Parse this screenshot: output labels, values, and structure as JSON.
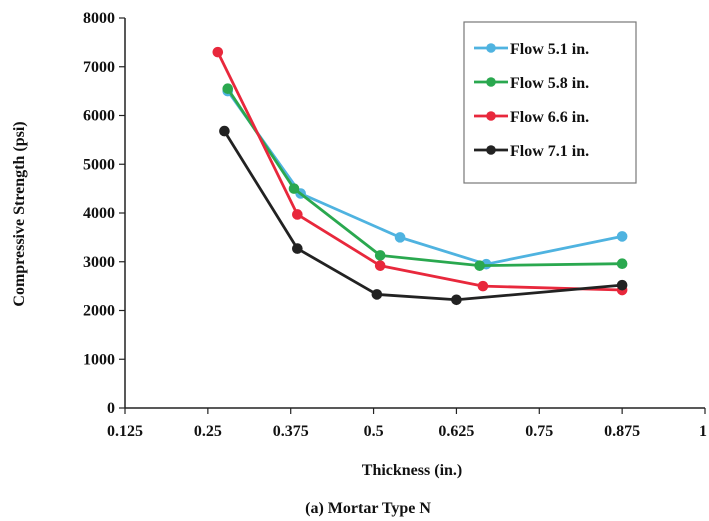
{
  "chart_data": {
    "type": "line",
    "xlabel": "Thickness (in.)",
    "ylabel": "Compressive Strength (psi)",
    "caption": "(a) Mortar Type N",
    "xlim": [
      0.125,
      1
    ],
    "ylim": [
      0,
      8000
    ],
    "x_ticks": [
      0.125,
      0.25,
      0.375,
      0.5,
      0.625,
      0.75,
      0.875,
      1
    ],
    "x_tick_labels": [
      "0.125",
      "0.25",
      "0.375",
      "0.5",
      "0.625",
      "0.75",
      "0.875",
      "1"
    ],
    "y_ticks": [
      0,
      1000,
      2000,
      3000,
      4000,
      5000,
      6000,
      7000,
      8000
    ],
    "y_tick_labels": [
      "0",
      "1000",
      "2000",
      "3000",
      "4000",
      "5000",
      "6000",
      "7000",
      "8000"
    ],
    "grid": false,
    "legend_position": "top-right",
    "series": [
      {
        "name": "Flow 5.1 in.",
        "color": "#4fb3e0",
        "x": [
          0.28,
          0.39,
          0.54,
          0.67,
          0.875
        ],
        "y": [
          6500,
          4400,
          3500,
          2950,
          3520
        ]
      },
      {
        "name": "Flow 5.8 in.",
        "color": "#2aa84f",
        "x": [
          0.28,
          0.38,
          0.51,
          0.66,
          0.875
        ],
        "y": [
          6550,
          4500,
          3130,
          2920,
          2960
        ]
      },
      {
        "name": "Flow 6.6 in.",
        "color": "#e8283c",
        "x": [
          0.265,
          0.385,
          0.51,
          0.665,
          0.875
        ],
        "y": [
          7300,
          3970,
          2920,
          2500,
          2420
        ]
      },
      {
        "name": "Flow 7.1 in.",
        "color": "#222222",
        "x": [
          0.275,
          0.385,
          0.505,
          0.625,
          0.875
        ],
        "y": [
          5680,
          3270,
          2330,
          2220,
          2520
        ]
      }
    ]
  }
}
